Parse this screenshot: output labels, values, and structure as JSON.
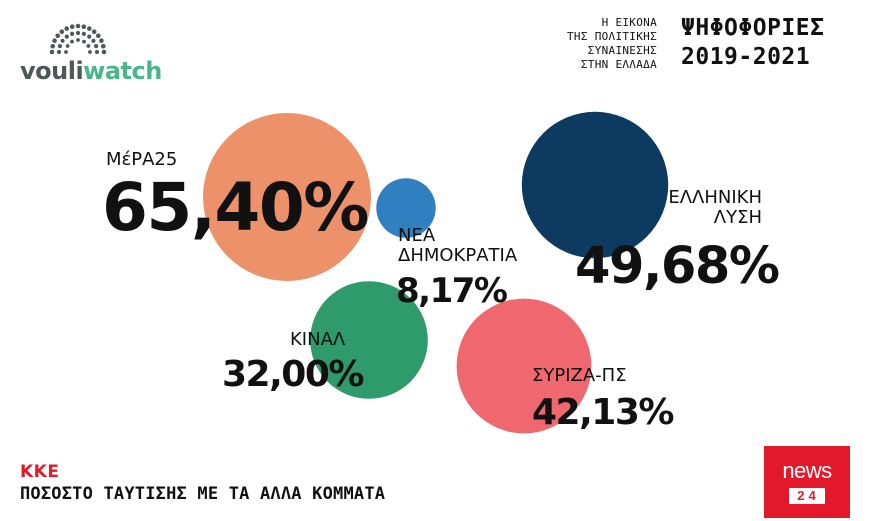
{
  "brand": {
    "logo_part1": "vouli",
    "logo_part2": "watch",
    "accent_color": "#4bb58a",
    "logo_gray": "#4d5859"
  },
  "header": {
    "subtitle_lines": [
      "Η ΕΙΚΟΝΑ",
      "ΤΗΣ ΠΟΛΙΤΙΚΗΣ",
      "ΣΥΝΑΙΝΕΣΗΣ",
      "ΣΤΗΝ ΕΛΛΑΔΑ"
    ],
    "title_line1": "ΨΗΦΟΦΟΡΙΕΣ",
    "title_line2": "2019-2021"
  },
  "chart_data": {
    "type": "bubble",
    "title": "ΨΗΦΟΦΟΡΙΕΣ 2019-2021",
    "focus_party": "ΚΚΕ",
    "measure": "ΠΟΣΟΣΤΟ ΤΑΥΤΙΣΗΣ ΜΕ ΤΑ ΑΛΛΑ ΚΟΜΜΑΤΑ",
    "series": [
      {
        "name": "ΜέΡΑ25",
        "value": 65.4,
        "label": "65,40%",
        "color": "#ec916a"
      },
      {
        "name": "ΕΛΛΗΝΙΚΗ ΛΥΣΗ",
        "name_lines": [
          "ΕΛΛΗΝΙΚΗ",
          "ΛΥΣΗ"
        ],
        "value": 49.68,
        "label": "49,68%",
        "color": "#0d3a60"
      },
      {
        "name": "ΣΥΡΙΖΑ-ΠΣ",
        "value": 42.13,
        "label": "42,13%",
        "color": "#ef6870"
      },
      {
        "name": "ΚΙΝΑΛ",
        "value": 32.0,
        "label": "32,00%",
        "color": "#2f9a6b"
      },
      {
        "name": "ΝΕΑ ΔΗΜΟΚΡΑΤΙΑ",
        "name_lines": [
          "ΝΕΑ",
          "ΔΗΜΟΚΡΑΤΙΑ"
        ],
        "value": 8.17,
        "label": "8,17%",
        "color": "#2f7fc1"
      }
    ]
  },
  "footer": {
    "focus_party": "ΚΚΕ",
    "caption": "ΠΟΣΟΣΤΟ ΤΑΥΤΙΣΗΣ ΜΕ ΤΑ ΑΛΛΑ ΚΟΜΜΑΤΑ"
  },
  "badge": {
    "word": "news",
    "number": "24 7",
    "color": "#e3192b"
  }
}
